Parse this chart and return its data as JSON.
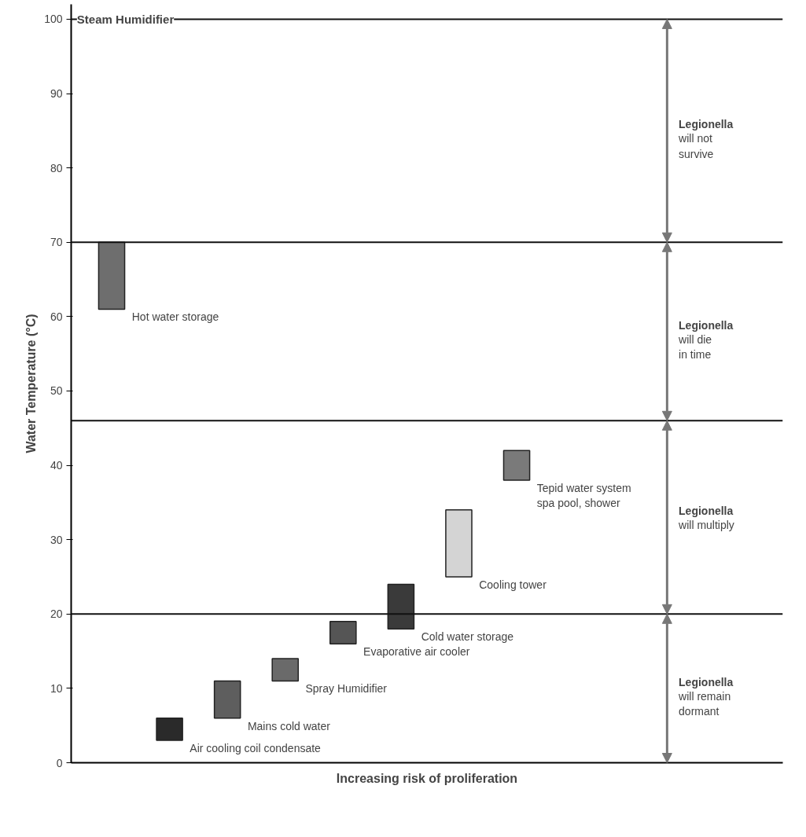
{
  "chart_data": {
    "type": "bar",
    "xlabel": "Increasing risk of proliferation",
    "ylabel": "Water Temperature (°C)",
    "categories": [
      null,
      null,
      null,
      null,
      null,
      null,
      null,
      null
    ],
    "values": [
      9,
      3,
      5,
      3,
      3,
      6,
      9,
      4
    ],
    "base": [
      61,
      3,
      6,
      11,
      16,
      18,
      25,
      38
    ],
    "colors": [
      "#6e6e6e",
      "#2a2a2a",
      "#5e5e5e",
      "#6a6a6a",
      "#555555",
      "#3a3a3a",
      "#d4d4d4",
      "#7a7a7a"
    ],
    "ylim": [
      0,
      102
    ],
    "yticks": [
      0,
      10,
      20,
      30,
      40,
      50,
      60,
      70,
      80,
      90,
      100
    ],
    "tick_labels": "y",
    "grid": false,
    "ref_lines": [
      {
        "axis": "y",
        "value": 100,
        "label": "Steam Humidifier"
      },
      {
        "axis": "y",
        "value": 70
      },
      {
        "axis": "y",
        "value": 46
      },
      {
        "axis": "y",
        "value": 20
      }
    ],
    "annotations": [
      "Hot water storage",
      "Air cooling coil condensate",
      "Mains cold water",
      "Spray Humidifier",
      "Evaporative air cooler",
      "Cold water storage",
      "Cooling tower",
      "Tepid water system spa pool, shower",
      "Legionella will not survive",
      "Legionella will die in time",
      "Legionella will multiply",
      "Legionella will remain dormant"
    ]
  }
}
